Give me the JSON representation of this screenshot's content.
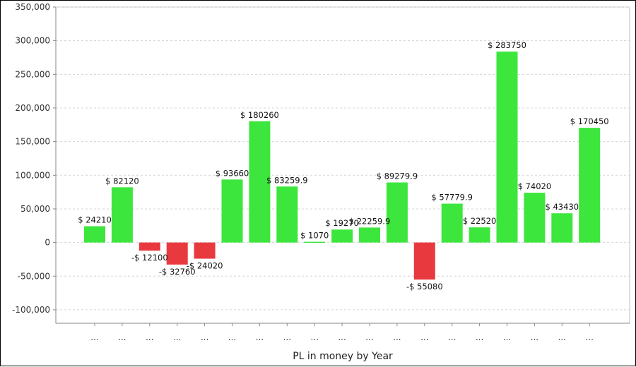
{
  "chart_data": {
    "type": "bar",
    "title": "",
    "xlabel": "PL in money by Year",
    "ylabel": "",
    "ylim": [
      -120000,
      350000
    ],
    "yticks": [
      350000,
      300000,
      250000,
      200000,
      150000,
      100000,
      50000,
      0,
      -50000,
      -100000
    ],
    "ytick_labels": [
      "350,000",
      "300,000",
      "250,000",
      "200,000",
      "150,000",
      "100,000",
      "50,000",
      "0",
      "-50,000",
      "-100,000"
    ],
    "grid": true,
    "categories": [
      "...",
      "...",
      "...",
      "...",
      "...",
      "...",
      "...",
      "...",
      "...",
      "...",
      "...",
      "...",
      "...",
      "...",
      "...",
      "...",
      "...",
      "...",
      "..."
    ],
    "values": [
      24210,
      82120,
      -12100,
      -32760,
      -24020,
      93660,
      180260,
      83259.9,
      1070,
      19270,
      22259.9,
      89279.9,
      -55080,
      57779.9,
      22520,
      283750,
      74020,
      43430,
      170450
    ],
    "data_labels": [
      "$ 24210",
      "$ 82120",
      "-$ 12100",
      "-$ 32760",
      "-$ 24020",
      "$ 93660",
      "$ 180260",
      "$ 83259.9",
      "$ 1070",
      "$ 19270",
      "$ 22259.9",
      "$ 89279.9",
      "-$ 55080",
      "$ 57779.9",
      "$ 22520",
      "$ 283750",
      "$ 74020",
      "$ 43430",
      "$ 170450"
    ],
    "colors": {
      "positive": "#3de63d",
      "negative": "#e8393f",
      "grid": "#d4d4d4",
      "axis": "#888888",
      "plot_border": "#bdbdbd"
    }
  }
}
